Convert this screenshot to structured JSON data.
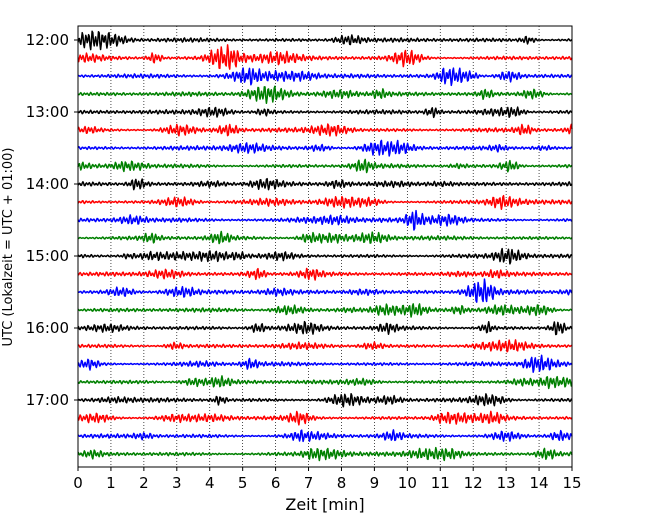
{
  "chart_data": {
    "type": "line",
    "title": "",
    "xlabel": "Zeit  [min]",
    "ylabel": "UTC (Lokalzeit = UTC + 01:00)",
    "xlim": [
      0,
      15
    ],
    "x_ticks": [
      "0",
      "1",
      "2",
      "3",
      "4",
      "5",
      "6",
      "7",
      "8",
      "9",
      "10",
      "11",
      "12",
      "13",
      "14",
      "15"
    ],
    "y_ticks": [
      "12:00",
      "13:00",
      "14:00",
      "15:00",
      "16:00",
      "17:00"
    ],
    "grid": "vertical dotted",
    "legend": "none",
    "trace_interval_min": 15,
    "trace_start": "12:00",
    "trace_count": 24,
    "trace_colors": [
      "#000000",
      "#ff0000",
      "#0000ff",
      "#008000"
    ]
  }
}
